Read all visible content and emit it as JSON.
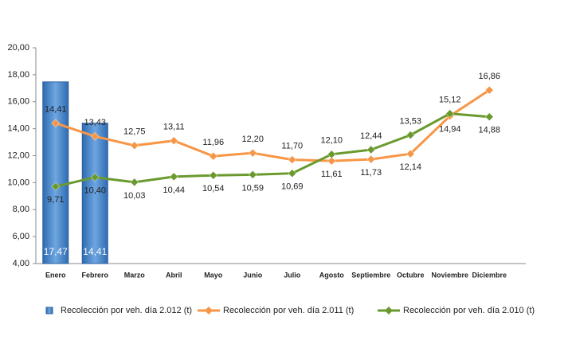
{
  "chart_data": {
    "type": "bar",
    "categories": [
      "Enero",
      "Febrero",
      "Marzo",
      "Abril",
      "Mayo",
      "Junio",
      "Julio",
      "Agosto",
      "Septiembre",
      "Octubre",
      "Noviembre",
      "Diciembre"
    ],
    "series": [
      {
        "name": "Recolección por veh. día 2.012 (t)",
        "type": "bar",
        "color": "#4f8fd1",
        "values": [
          17.47,
          14.41,
          null,
          null,
          null,
          null,
          null,
          null,
          null,
          null,
          null,
          null
        ],
        "value_labels": [
          "17,47",
          "14,41",
          null,
          null,
          null,
          null,
          null,
          null,
          null,
          null,
          null,
          null
        ]
      },
      {
        "name": "Recolección por veh. día 2.011 (t)",
        "type": "line",
        "color": "#f79646",
        "values": [
          14.41,
          13.43,
          12.75,
          13.11,
          11.96,
          12.2,
          11.7,
          11.61,
          11.73,
          12.14,
          14.94,
          16.86
        ],
        "value_labels": [
          "14,41",
          "13,43",
          "12,75",
          "13,11",
          "11,96",
          "12,20",
          "11,70",
          "11,61",
          "11,73",
          "12,14",
          "14,94",
          "16,86"
        ]
      },
      {
        "name": "Recolección por veh. día 2.010 (t)",
        "type": "line",
        "color": "#6a9a2e",
        "values": [
          9.71,
          10.4,
          10.03,
          10.44,
          10.54,
          10.59,
          10.69,
          12.1,
          12.44,
          13.53,
          15.12,
          14.88
        ],
        "value_labels": [
          "9,71",
          "10,40",
          "10,03",
          "10,44",
          "10,54",
          "10,59",
          "10,69",
          "12,10",
          "12,44",
          "13,53",
          "15,12",
          "14,88"
        ]
      }
    ],
    "ylim": [
      4,
      20
    ],
    "yticks": [
      {
        "value": 4,
        "label": "4,00"
      },
      {
        "value": 6,
        "label": "6,00"
      },
      {
        "value": 8,
        "label": "8,00"
      },
      {
        "value": 10,
        "label": "10,00"
      },
      {
        "value": 12,
        "label": "12,00"
      },
      {
        "value": 14,
        "label": "14,00"
      },
      {
        "value": 16,
        "label": "16,00"
      },
      {
        "value": 18,
        "label": "18,00"
      },
      {
        "value": 20,
        "label": "20,00"
      }
    ],
    "grid": false,
    "legend": "bottom"
  }
}
